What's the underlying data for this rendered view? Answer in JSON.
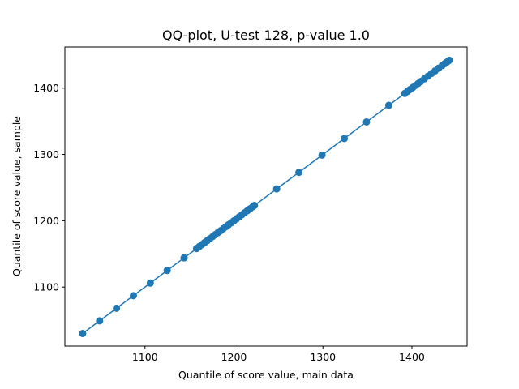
{
  "chart_data": {
    "type": "line",
    "title": "QQ-plot, U-test 128, p-value 1.0",
    "xlabel": "Quantile of score value, main data",
    "ylabel": "Quantile of score value, sample",
    "xlim": [
      1010,
      1462
    ],
    "ylim": [
      1011,
      1462
    ],
    "xticks": [
      1100,
      1200,
      1300,
      1400
    ],
    "yticks": [
      1100,
      1200,
      1300,
      1400
    ],
    "grid": false,
    "legend": "none",
    "series": [
      {
        "color": "#1f77b4",
        "marker": "circle",
        "x": [
          1030,
          1049,
          1068,
          1087,
          1106,
          1125,
          1144,
          1158,
          1161,
          1164,
          1167,
          1170,
          1173,
          1176,
          1179,
          1182,
          1185,
          1188,
          1191,
          1194,
          1197,
          1200,
          1203,
          1206,
          1209,
          1212,
          1215,
          1218,
          1221,
          1223,
          1248,
          1273,
          1299,
          1324,
          1349,
          1374,
          1392,
          1395,
          1398,
          1401,
          1404,
          1407,
          1410,
          1414,
          1418,
          1422,
          1426,
          1430,
          1434,
          1437,
          1439,
          1441,
          1442
        ],
        "y": [
          1030,
          1049,
          1068,
          1087,
          1106,
          1125,
          1144,
          1158,
          1161,
          1164,
          1167,
          1170,
          1173,
          1176,
          1179,
          1182,
          1185,
          1188,
          1191,
          1194,
          1197,
          1200,
          1203,
          1206,
          1209,
          1212,
          1215,
          1218,
          1221,
          1223,
          1248,
          1273,
          1299,
          1324,
          1349,
          1374,
          1392,
          1395,
          1398,
          1401,
          1404,
          1407,
          1410,
          1414,
          1418,
          1422,
          1426,
          1430,
          1434,
          1437,
          1439,
          1441,
          1442
        ]
      }
    ]
  }
}
